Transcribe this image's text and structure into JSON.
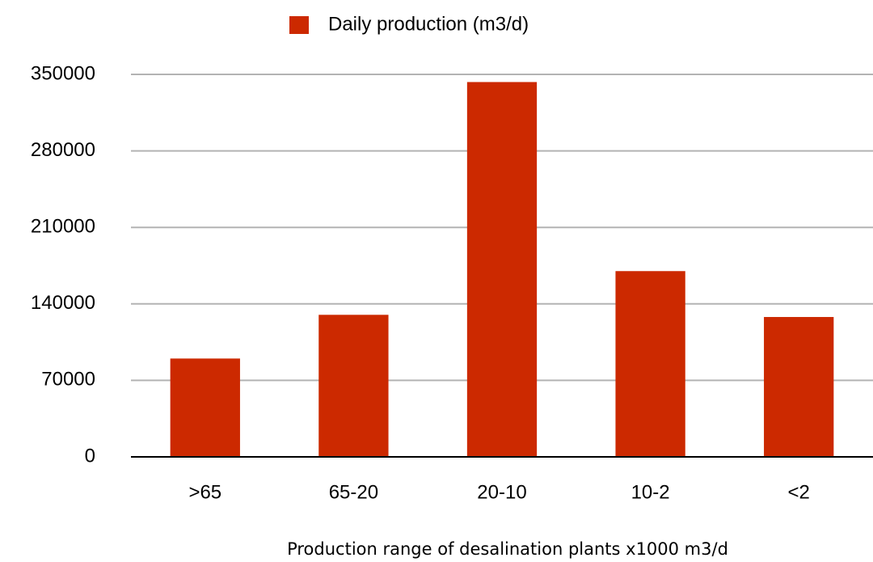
{
  "chart_data": {
    "type": "bar",
    "legend": "Daily production (m3/d)",
    "x_label": "Production range of desalination plants x1000 m3/d",
    "categories": [
      ">65",
      "65-20",
      "20-10",
      "10-2",
      "<2"
    ],
    "values": [
      90000,
      130000,
      343000,
      170000,
      128000
    ],
    "color": "#cc2900",
    "ylim": [
      0,
      350000
    ],
    "yticks": [
      0,
      70000,
      140000,
      210000,
      280000,
      350000
    ],
    "grid": true
  }
}
